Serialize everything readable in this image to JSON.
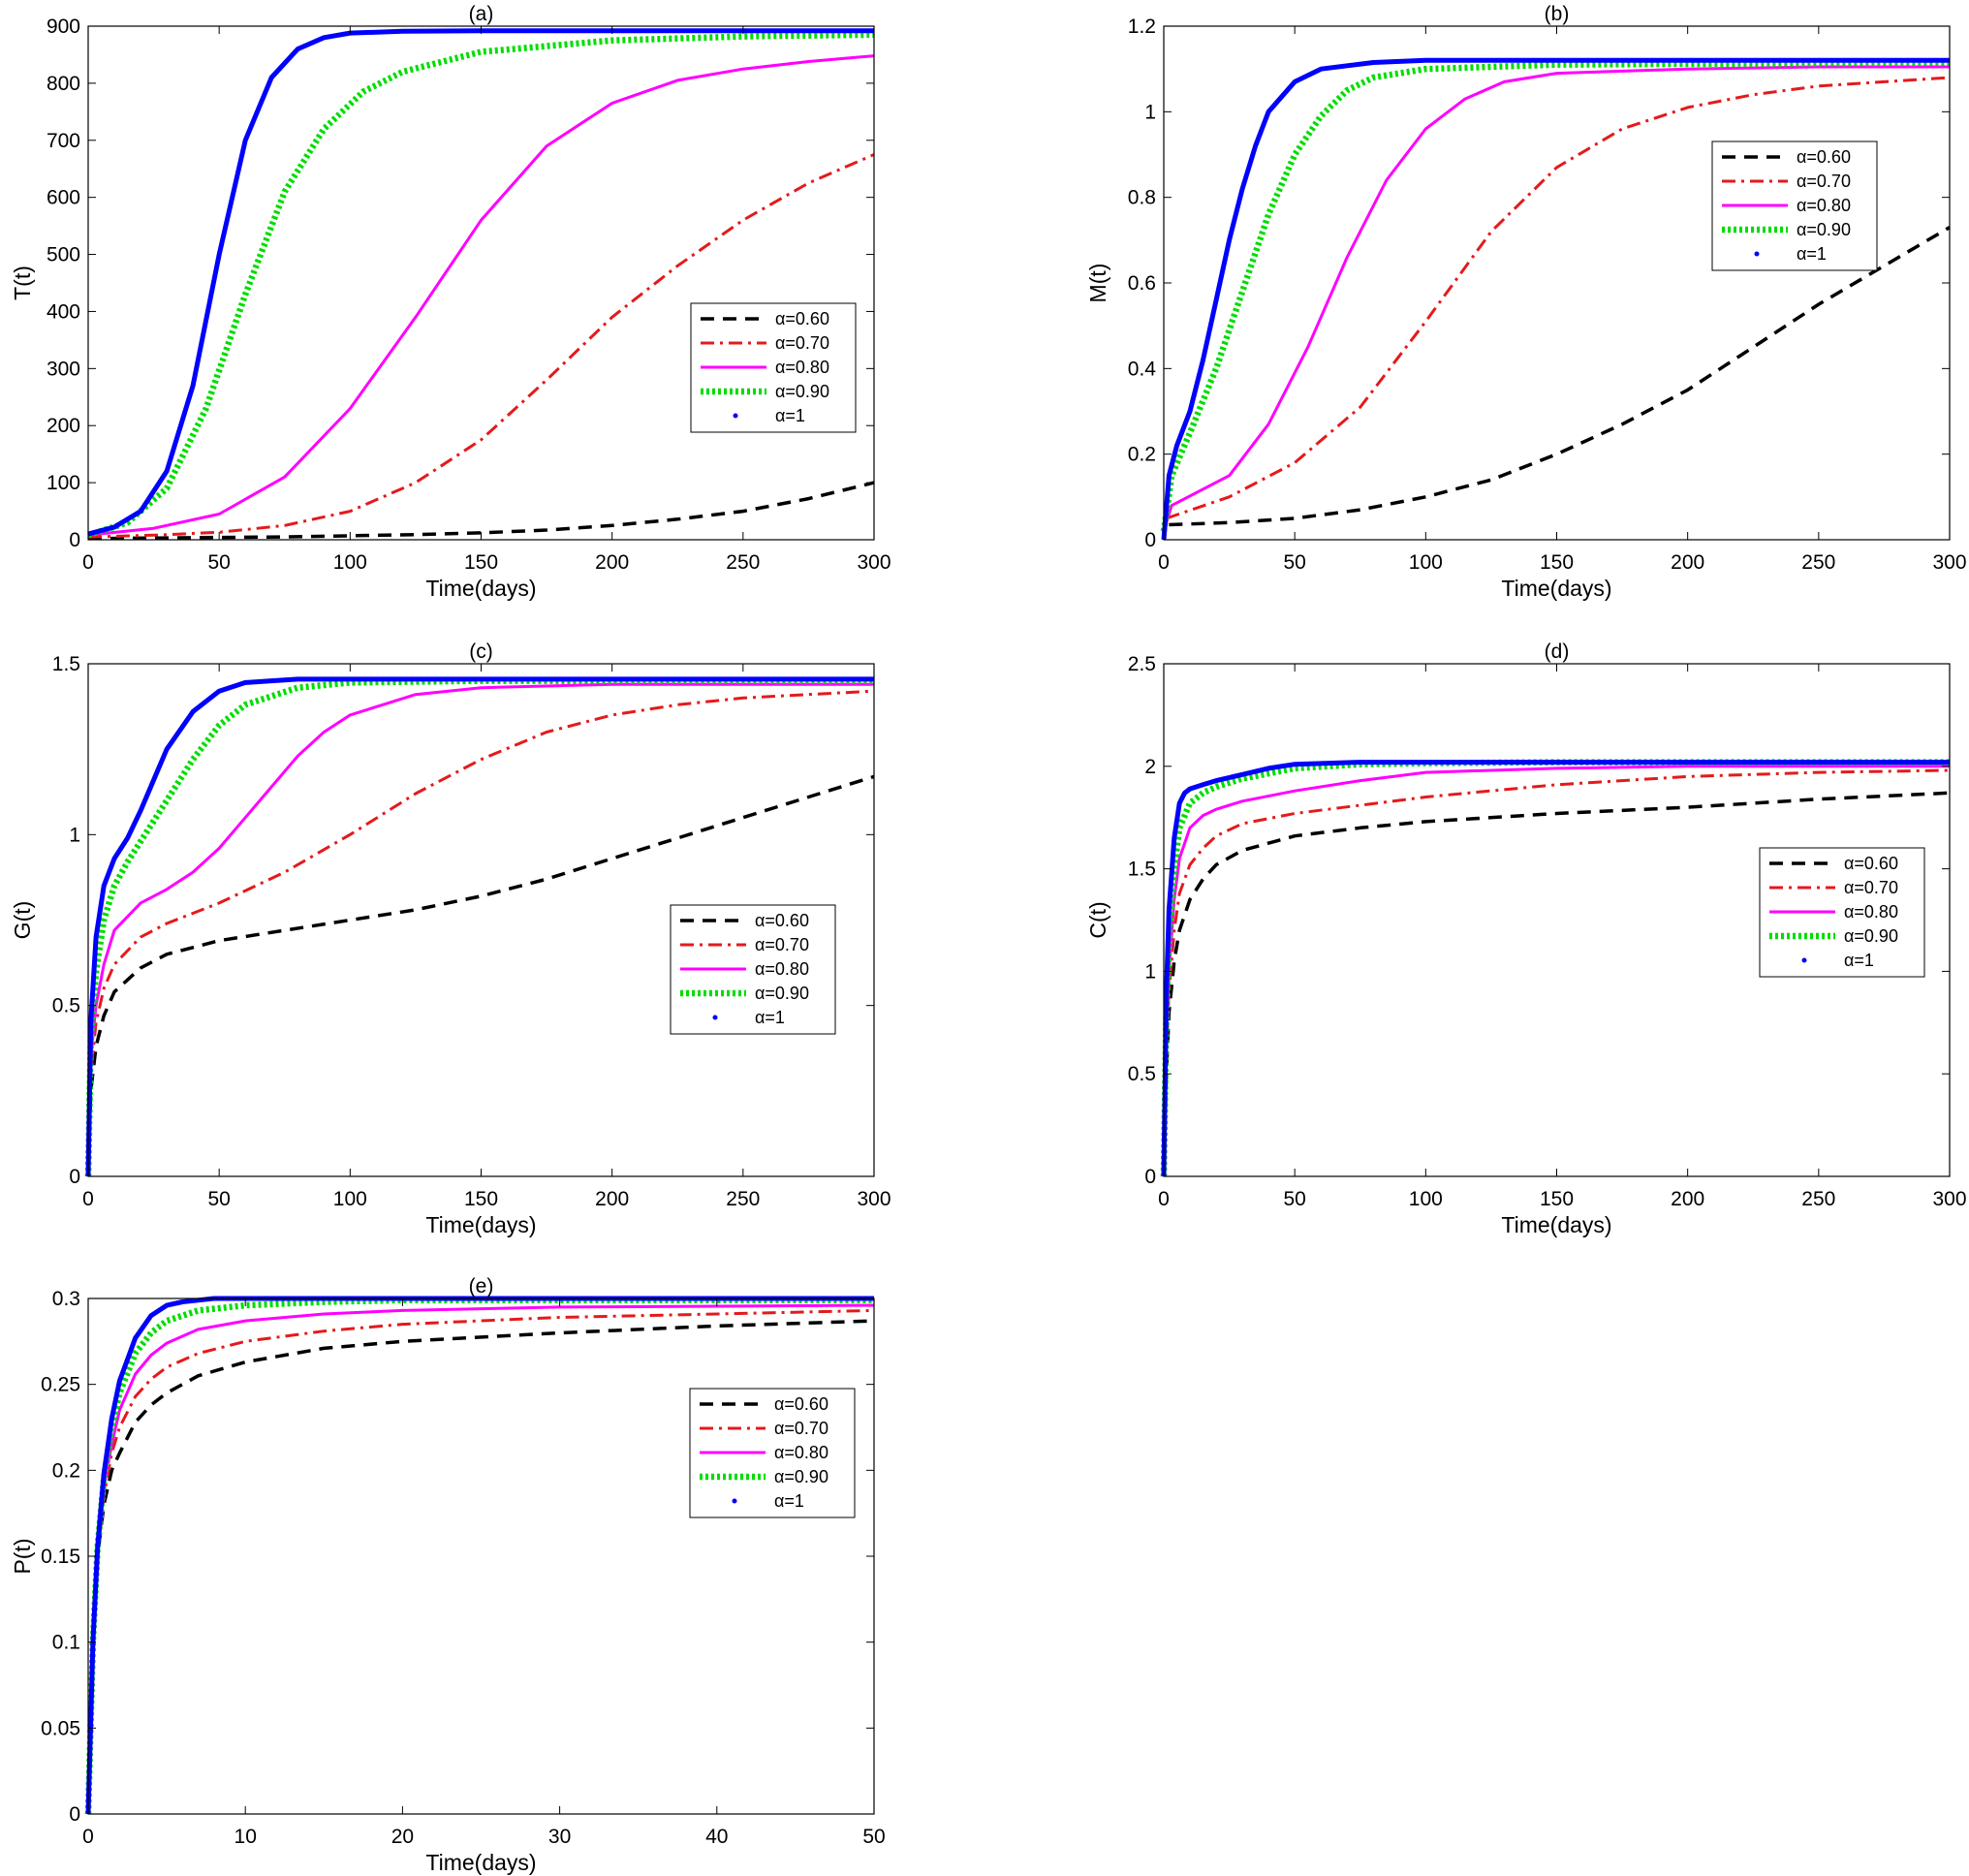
{
  "chart_data": [
    {
      "panel": "a",
      "type": "line",
      "title": "(a)",
      "xlabel": "Time(days)",
      "ylabel": "T(t)",
      "xlim": [
        0,
        300
      ],
      "ylim": [
        0,
        900
      ],
      "xticks": [
        0,
        50,
        100,
        150,
        200,
        250,
        300
      ],
      "yticks": [
        0,
        100,
        200,
        300,
        400,
        500,
        600,
        700,
        800,
        900
      ],
      "legend_position": "center-right",
      "series": [
        {
          "name": "α=0.60",
          "style": "dashed",
          "color": "#000000",
          "x": [
            0,
            25,
            50,
            75,
            100,
            125,
            150,
            175,
            200,
            225,
            250,
            275,
            300
          ],
          "y": [
            2,
            3,
            4,
            5,
            7,
            9,
            12,
            17,
            25,
            36,
            50,
            72,
            100
          ]
        },
        {
          "name": "α=0.70",
          "style": "dashdot",
          "color": "#e41a1c",
          "x": [
            0,
            25,
            50,
            75,
            100,
            125,
            150,
            175,
            200,
            225,
            250,
            275,
            300
          ],
          "y": [
            5,
            8,
            13,
            25,
            50,
            100,
            175,
            280,
            390,
            480,
            560,
            625,
            675
          ]
        },
        {
          "name": "α=0.80",
          "style": "solid",
          "color": "#ff00ff",
          "x": [
            0,
            25,
            50,
            75,
            100,
            125,
            150,
            175,
            200,
            225,
            250,
            275,
            300
          ],
          "y": [
            8,
            20,
            45,
            110,
            230,
            390,
            560,
            690,
            765,
            805,
            825,
            838,
            848
          ]
        },
        {
          "name": "α=0.90",
          "style": "dotted",
          "color": "#00dd00",
          "x": [
            0,
            15,
            30,
            45,
            60,
            75,
            90,
            105,
            120,
            150,
            200,
            250,
            300
          ],
          "y": [
            8,
            30,
            90,
            230,
            430,
            610,
            720,
            785,
            820,
            855,
            875,
            882,
            885
          ]
        },
        {
          "name": "α=1",
          "style": "solid-thick",
          "color": "#0000ff",
          "x": [
            0,
            10,
            20,
            30,
            40,
            50,
            60,
            70,
            80,
            90,
            100,
            120,
            150,
            300
          ],
          "y": [
            10,
            22,
            50,
            120,
            270,
            500,
            700,
            810,
            860,
            880,
            888,
            891,
            892,
            892
          ]
        }
      ]
    },
    {
      "panel": "b",
      "type": "line",
      "title": "(b)",
      "xlabel": "Time(days)",
      "ylabel": "M(t)",
      "xlim": [
        0,
        300
      ],
      "ylim": [
        0,
        1.2
      ],
      "xticks": [
        0,
        50,
        100,
        150,
        200,
        250,
        300
      ],
      "yticks": [
        0,
        0.2,
        0.4,
        0.6,
        0.8,
        1,
        1.2
      ],
      "legend_position": "top-right",
      "series": [
        {
          "name": "α=0.60",
          "style": "dashed",
          "color": "#000000",
          "x": [
            2,
            25,
            50,
            75,
            100,
            125,
            150,
            175,
            200,
            225,
            250,
            275,
            300
          ],
          "y": [
            0.035,
            0.04,
            0.05,
            0.07,
            0.1,
            0.14,
            0.2,
            0.27,
            0.35,
            0.45,
            0.55,
            0.64,
            0.73
          ]
        },
        {
          "name": "α=0.70",
          "style": "dashdot",
          "color": "#e41a1c",
          "x": [
            1,
            25,
            50,
            75,
            100,
            125,
            150,
            175,
            200,
            225,
            250,
            275,
            300
          ],
          "y": [
            0.05,
            0.1,
            0.18,
            0.31,
            0.51,
            0.72,
            0.87,
            0.96,
            1.01,
            1.04,
            1.06,
            1.07,
            1.08
          ]
        },
        {
          "name": "α=0.80",
          "style": "solid",
          "color": "#ff00ff",
          "x": [
            0,
            3,
            25,
            40,
            55,
            70,
            85,
            100,
            115,
            130,
            150,
            200,
            250,
            300
          ],
          "y": [
            0.02,
            0.08,
            0.15,
            0.27,
            0.45,
            0.66,
            0.84,
            0.96,
            1.03,
            1.07,
            1.09,
            1.1,
            1.105,
            1.105
          ]
        },
        {
          "name": "α=0.90",
          "style": "dotted",
          "color": "#00dd00",
          "x": [
            0,
            3,
            10,
            20,
            30,
            40,
            50,
            60,
            70,
            80,
            100,
            150,
            300
          ],
          "y": [
            0.02,
            0.15,
            0.25,
            0.4,
            0.58,
            0.76,
            0.9,
            0.99,
            1.05,
            1.08,
            1.1,
            1.11,
            1.115
          ]
        },
        {
          "name": "α=1",
          "style": "solid-thick",
          "color": "#0000ff",
          "x": [
            0,
            2,
            5,
            10,
            15,
            20,
            25,
            30,
            35,
            40,
            50,
            60,
            80,
            100,
            300
          ],
          "y": [
            0,
            0.15,
            0.22,
            0.3,
            0.42,
            0.56,
            0.7,
            0.82,
            0.92,
            1.0,
            1.07,
            1.1,
            1.115,
            1.12,
            1.12
          ]
        }
      ]
    },
    {
      "panel": "c",
      "type": "line",
      "title": "(c)",
      "xlabel": "Time(days)",
      "ylabel": "G(t)",
      "xlim": [
        0,
        300
      ],
      "ylim": [
        0,
        1.5
      ],
      "xticks": [
        0,
        50,
        100,
        150,
        200,
        250,
        300
      ],
      "yticks": [
        0,
        0.5,
        1,
        1.5
      ],
      "legend_position": "center-right",
      "series": [
        {
          "name": "α=0.60",
          "style": "dashed",
          "color": "#000000",
          "x": [
            0,
            1,
            3,
            6,
            10,
            20,
            30,
            50,
            75,
            100,
            125,
            150,
            175,
            200,
            225,
            250,
            275,
            300
          ],
          "y": [
            0,
            0.25,
            0.38,
            0.47,
            0.54,
            0.61,
            0.65,
            0.69,
            0.72,
            0.75,
            0.78,
            0.82,
            0.87,
            0.93,
            0.99,
            1.05,
            1.11,
            1.17
          ]
        },
        {
          "name": "α=0.70",
          "style": "dashdot",
          "color": "#e41a1c",
          "x": [
            0,
            1,
            3,
            6,
            10,
            20,
            30,
            50,
            75,
            100,
            125,
            150,
            175,
            200,
            225,
            250,
            275,
            300
          ],
          "y": [
            0,
            0.3,
            0.45,
            0.55,
            0.62,
            0.7,
            0.74,
            0.8,
            0.89,
            1.0,
            1.12,
            1.22,
            1.3,
            1.35,
            1.38,
            1.4,
            1.41,
            1.42
          ]
        },
        {
          "name": "α=0.80",
          "style": "solid",
          "color": "#ff00ff",
          "x": [
            0,
            1,
            3,
            6,
            10,
            20,
            30,
            40,
            50,
            60,
            70,
            80,
            90,
            100,
            125,
            150,
            200,
            250,
            300
          ],
          "y": [
            0,
            0.35,
            0.5,
            0.62,
            0.72,
            0.8,
            0.84,
            0.89,
            0.96,
            1.05,
            1.14,
            1.23,
            1.3,
            1.35,
            1.41,
            1.43,
            1.44,
            1.44,
            1.44
          ]
        },
        {
          "name": "α=0.90",
          "style": "dotted",
          "color": "#00dd00",
          "x": [
            0,
            1,
            3,
            6,
            10,
            15,
            20,
            30,
            40,
            50,
            60,
            80,
            100,
            150,
            300
          ],
          "y": [
            0,
            0.4,
            0.6,
            0.75,
            0.85,
            0.92,
            0.98,
            1.1,
            1.22,
            1.32,
            1.38,
            1.43,
            1.445,
            1.45,
            1.45
          ]
        },
        {
          "name": "α=1",
          "style": "solid-thick",
          "color": "#0000ff",
          "x": [
            0,
            1,
            3,
            6,
            10,
            15,
            20,
            25,
            30,
            40,
            50,
            60,
            70,
            80,
            100,
            300
          ],
          "y": [
            0,
            0.45,
            0.7,
            0.85,
            0.93,
            0.99,
            1.07,
            1.16,
            1.25,
            1.36,
            1.42,
            1.445,
            1.45,
            1.455,
            1.455,
            1.455
          ]
        }
      ]
    },
    {
      "panel": "d",
      "type": "line",
      "title": "(d)",
      "xlabel": "Time(days)",
      "ylabel": "C(t)",
      "xlim": [
        0,
        300
      ],
      "ylim": [
        0,
        2.5
      ],
      "xticks": [
        0,
        50,
        100,
        150,
        200,
        250,
        300
      ],
      "yticks": [
        0,
        0.5,
        1,
        1.5,
        2,
        2.5
      ],
      "legend_position": "center-right",
      "series": [
        {
          "name": "α=0.60",
          "style": "dashed",
          "color": "#000000",
          "x": [
            0,
            1,
            2,
            4,
            6,
            10,
            15,
            20,
            30,
            50,
            75,
            100,
            150,
            200,
            250,
            300
          ],
          "y": [
            0,
            0.5,
            0.8,
            1.05,
            1.2,
            1.35,
            1.45,
            1.52,
            1.59,
            1.66,
            1.7,
            1.73,
            1.77,
            1.8,
            1.84,
            1.87
          ]
        },
        {
          "name": "α=0.70",
          "style": "dashdot",
          "color": "#e41a1c",
          "x": [
            0,
            1,
            2,
            4,
            6,
            10,
            15,
            20,
            30,
            50,
            75,
            100,
            150,
            200,
            250,
            300
          ],
          "y": [
            0,
            0.6,
            0.9,
            1.2,
            1.38,
            1.52,
            1.6,
            1.66,
            1.72,
            1.77,
            1.81,
            1.85,
            1.91,
            1.95,
            1.97,
            1.98
          ]
        },
        {
          "name": "α=0.80",
          "style": "solid",
          "color": "#ff00ff",
          "x": [
            0,
            1,
            2,
            4,
            6,
            10,
            15,
            20,
            30,
            50,
            75,
            100,
            150,
            200,
            250,
            300
          ],
          "y": [
            0,
            0.7,
            1.0,
            1.35,
            1.55,
            1.7,
            1.76,
            1.79,
            1.83,
            1.88,
            1.93,
            1.97,
            1.99,
            2.0,
            2.0,
            2.0
          ]
        },
        {
          "name": "α=0.90",
          "style": "dotted",
          "color": "#00dd00",
          "x": [
            0,
            1,
            2,
            4,
            6,
            10,
            15,
            20,
            30,
            50,
            75,
            100,
            150,
            300
          ],
          "y": [
            0,
            0.8,
            1.15,
            1.5,
            1.7,
            1.82,
            1.87,
            1.9,
            1.94,
            1.99,
            2.01,
            2.015,
            2.02,
            2.02
          ]
        },
        {
          "name": "α=1",
          "style": "solid-thick",
          "color": "#0000ff",
          "x": [
            0,
            1,
            2,
            4,
            6,
            8,
            10,
            15,
            20,
            30,
            40,
            50,
            75,
            100,
            300
          ],
          "y": [
            0,
            0.9,
            1.3,
            1.65,
            1.82,
            1.87,
            1.89,
            1.91,
            1.93,
            1.96,
            1.99,
            2.01,
            2.02,
            2.02,
            2.02
          ]
        }
      ]
    },
    {
      "panel": "e",
      "type": "line",
      "title": "(e)",
      "xlabel": "Time(days)",
      "ylabel": "P(t)",
      "xlim": [
        0,
        50
      ],
      "ylim": [
        0,
        0.3
      ],
      "xticks": [
        0,
        10,
        20,
        30,
        40,
        50
      ],
      "yticks": [
        0,
        0.05,
        0.1,
        0.15,
        0.2,
        0.25,
        0.3
      ],
      "legend_position": "top-right",
      "series": [
        {
          "name": "α=0.60",
          "style": "dashed",
          "color": "#000000",
          "x": [
            0,
            0.3,
            0.6,
            1,
            1.5,
            2,
            3,
            4,
            5,
            7,
            10,
            15,
            20,
            30,
            40,
            50
          ],
          "y": [
            0,
            0.1,
            0.15,
            0.18,
            0.2,
            0.21,
            0.228,
            0.238,
            0.245,
            0.255,
            0.263,
            0.271,
            0.275,
            0.28,
            0.284,
            0.287
          ]
        },
        {
          "name": "α=0.70",
          "style": "dashdot",
          "color": "#e41a1c",
          "x": [
            0,
            0.3,
            0.6,
            1,
            1.5,
            2,
            3,
            4,
            5,
            7,
            10,
            15,
            20,
            30,
            40,
            50
          ],
          "y": [
            0,
            0.1,
            0.15,
            0.185,
            0.21,
            0.225,
            0.243,
            0.253,
            0.26,
            0.268,
            0.275,
            0.281,
            0.285,
            0.289,
            0.291,
            0.293
          ]
        },
        {
          "name": "α=0.80",
          "style": "solid",
          "color": "#ff00ff",
          "x": [
            0,
            0.3,
            0.6,
            1,
            1.5,
            2,
            3,
            4,
            5,
            7,
            10,
            15,
            20,
            30,
            50
          ],
          "y": [
            0,
            0.1,
            0.15,
            0.19,
            0.215,
            0.235,
            0.256,
            0.267,
            0.274,
            0.282,
            0.287,
            0.291,
            0.293,
            0.295,
            0.296
          ]
        },
        {
          "name": "α=0.90",
          "style": "dotted",
          "color": "#00dd00",
          "x": [
            0,
            0.3,
            0.6,
            1,
            1.5,
            2,
            3,
            4,
            5,
            7,
            10,
            15,
            20,
            50
          ],
          "y": [
            0,
            0.1,
            0.155,
            0.195,
            0.225,
            0.245,
            0.268,
            0.28,
            0.287,
            0.293,
            0.296,
            0.298,
            0.299,
            0.299
          ]
        },
        {
          "name": "α=1",
          "style": "solid-thick",
          "color": "#0000ff",
          "x": [
            0,
            0.3,
            0.6,
            1,
            1.5,
            2,
            3,
            4,
            5,
            6,
            7,
            8,
            10,
            50
          ],
          "y": [
            0,
            0.1,
            0.155,
            0.198,
            0.23,
            0.252,
            0.277,
            0.29,
            0.296,
            0.298,
            0.299,
            0.3,
            0.3,
            0.3
          ]
        }
      ]
    }
  ]
}
